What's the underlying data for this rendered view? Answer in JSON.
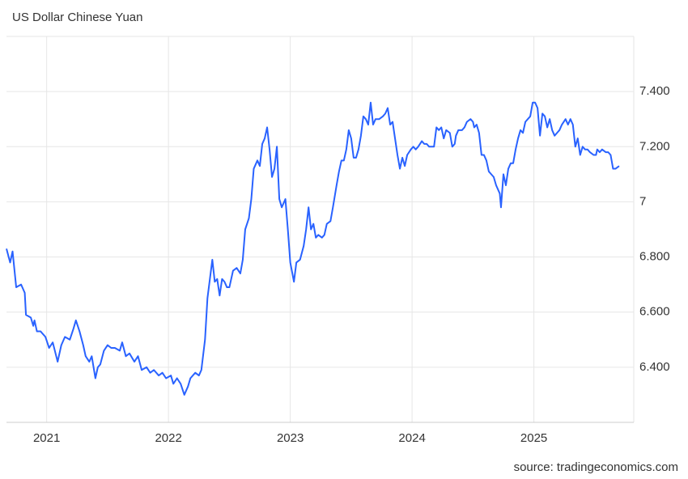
{
  "chart_data": {
    "type": "line",
    "title": "US Dollar Chinese Yuan",
    "source": "source: tradingeconomics.com",
    "color": "#2962ff",
    "grid": true,
    "xlim": [
      2020.67,
      2025.82
    ],
    "xticks": [
      2021,
      2022,
      2023,
      2024,
      2025
    ],
    "ylim": [
      6.2,
      7.6
    ],
    "yticks": [
      {
        "value": 6.4,
        "label": "6.400"
      },
      {
        "value": 6.6,
        "label": "6.600"
      },
      {
        "value": 6.8,
        "label": "6.800"
      },
      7,
      {
        "value": 7.2,
        "label": "7.200"
      },
      {
        "value": 7.4,
        "label": "7.400"
      }
    ],
    "x": [
      2020.67,
      2020.7,
      2020.72,
      2020.75,
      2020.79,
      2020.82,
      2020.83,
      2020.87,
      2020.89,
      2020.9,
      2020.92,
      2020.95,
      2020.99,
      2021.02,
      2021.05,
      2021.09,
      2021.12,
      2021.15,
      2021.19,
      2021.22,
      2021.24,
      2021.27,
      2021.3,
      2021.32,
      2021.35,
      2021.37,
      2021.4,
      2021.42,
      2021.44,
      2021.47,
      2021.5,
      2021.53,
      2021.56,
      2021.6,
      2021.62,
      2021.65,
      2021.68,
      2021.72,
      2021.75,
      2021.78,
      2021.82,
      2021.85,
      2021.88,
      2021.92,
      2021.95,
      2021.98,
      2022.02,
      2022.04,
      2022.07,
      2022.1,
      2022.13,
      2022.16,
      2022.18,
      2022.22,
      2022.25,
      2022.27,
      2022.3,
      2022.32,
      2022.34,
      2022.36,
      2022.38,
      2022.4,
      2022.42,
      2022.44,
      2022.46,
      2022.48,
      2022.5,
      2022.53,
      2022.56,
      2022.59,
      2022.61,
      2022.63,
      2022.66,
      2022.68,
      2022.7,
      2022.73,
      2022.75,
      2022.77,
      2022.79,
      2022.81,
      2022.83,
      2022.85,
      2022.87,
      2022.89,
      2022.91,
      2022.93,
      2022.96,
      2022.98,
      2023.0,
      2023.03,
      2023.05,
      2023.08,
      2023.11,
      2023.13,
      2023.15,
      2023.17,
      2023.19,
      2023.21,
      2023.23,
      2023.26,
      2023.28,
      2023.3,
      2023.33,
      2023.35,
      2023.38,
      2023.4,
      2023.42,
      2023.44,
      2023.46,
      2023.48,
      2023.5,
      2023.52,
      2023.54,
      2023.56,
      2023.58,
      2023.6,
      2023.62,
      2023.64,
      2023.66,
      2023.68,
      2023.7,
      2023.73,
      2023.76,
      2023.78,
      2023.8,
      2023.82,
      2023.84,
      2023.86,
      2023.88,
      2023.9,
      2023.92,
      2023.94,
      2023.96,
      2023.99,
      2024.01,
      2024.03,
      2024.05,
      2024.08,
      2024.1,
      2024.12,
      2024.14,
      2024.16,
      2024.18,
      2024.2,
      2024.22,
      2024.24,
      2024.26,
      2024.28,
      2024.31,
      2024.33,
      2024.35,
      2024.36,
      2024.38,
      2024.41,
      2024.43,
      2024.45,
      2024.48,
      2024.5,
      2024.51,
      2024.53,
      2024.55,
      2024.57,
      2024.59,
      2024.61,
      2024.63,
      2024.65,
      2024.67,
      2024.69,
      2024.72,
      2024.73,
      2024.75,
      2024.77,
      2024.79,
      2024.81,
      2024.83,
      2024.85,
      2024.87,
      2024.89,
      2024.91,
      2024.93,
      2024.95,
      2024.97,
      2024.99,
      2025.01,
      2025.03,
      2025.05,
      2025.07,
      2025.09,
      2025.11,
      2025.13,
      2025.15,
      2025.17,
      2025.19,
      2025.21,
      2025.23,
      2025.26,
      2025.28,
      2025.3,
      2025.32,
      2025.34,
      2025.36,
      2025.38,
      2025.4,
      2025.42,
      2025.44,
      2025.46,
      2025.49,
      2025.51,
      2025.52,
      2025.54,
      2025.56,
      2025.59,
      2025.61,
      2025.63,
      2025.65,
      2025.67,
      2025.7
    ],
    "values": [
      6.83,
      6.78,
      6.82,
      6.69,
      6.7,
      6.67,
      6.59,
      6.58,
      6.55,
      6.57,
      6.53,
      6.53,
      6.51,
      6.47,
      6.49,
      6.42,
      6.48,
      6.51,
      6.5,
      6.54,
      6.57,
      6.53,
      6.48,
      6.44,
      6.42,
      6.44,
      6.36,
      6.4,
      6.41,
      6.46,
      6.48,
      6.47,
      6.47,
      6.46,
      6.49,
      6.44,
      6.45,
      6.42,
      6.44,
      6.39,
      6.4,
      6.38,
      6.39,
      6.37,
      6.38,
      6.36,
      6.37,
      6.34,
      6.36,
      6.34,
      6.3,
      6.33,
      6.36,
      6.38,
      6.37,
      6.39,
      6.5,
      6.65,
      6.72,
      6.79,
      6.71,
      6.72,
      6.66,
      6.72,
      6.71,
      6.69,
      6.69,
      6.75,
      6.76,
      6.74,
      6.79,
      6.9,
      6.94,
      7.01,
      7.12,
      7.15,
      7.13,
      7.21,
      7.23,
      7.27,
      7.19,
      7.09,
      7.12,
      7.2,
      7.01,
      6.98,
      7.01,
      6.9,
      6.78,
      6.71,
      6.78,
      6.79,
      6.84,
      6.9,
      6.98,
      6.9,
      6.92,
      6.87,
      6.88,
      6.87,
      6.88,
      6.92,
      6.93,
      6.98,
      7.06,
      7.11,
      7.15,
      7.15,
      7.19,
      7.26,
      7.23,
      7.16,
      7.16,
      7.19,
      7.24,
      7.31,
      7.3,
      7.28,
      7.36,
      7.28,
      7.3,
      7.3,
      7.31,
      7.32,
      7.34,
      7.28,
      7.29,
      7.23,
      7.17,
      7.12,
      7.16,
      7.13,
      7.17,
      7.19,
      7.2,
      7.19,
      7.2,
      7.22,
      7.21,
      7.21,
      7.2,
      7.2,
      7.2,
      7.27,
      7.26,
      7.27,
      7.23,
      7.26,
      7.25,
      7.2,
      7.21,
      7.24,
      7.26,
      7.26,
      7.27,
      7.29,
      7.3,
      7.29,
      7.27,
      7.28,
      7.25,
      7.17,
      7.17,
      7.15,
      7.11,
      7.1,
      7.09,
      7.06,
      7.03,
      6.98,
      7.1,
      7.06,
      7.12,
      7.14,
      7.14,
      7.19,
      7.23,
      7.26,
      7.25,
      7.29,
      7.3,
      7.31,
      7.36,
      7.36,
      7.34,
      7.24,
      7.32,
      7.31,
      7.27,
      7.3,
      7.26,
      7.24,
      7.25,
      7.26,
      7.28,
      7.3,
      7.28,
      7.3,
      7.28,
      7.2,
      7.23,
      7.17,
      7.2,
      7.19,
      7.19,
      7.18,
      7.17,
      7.17,
      7.19,
      7.18,
      7.19,
      7.18,
      7.18,
      7.17,
      7.12,
      7.12,
      7.13
    ]
  }
}
